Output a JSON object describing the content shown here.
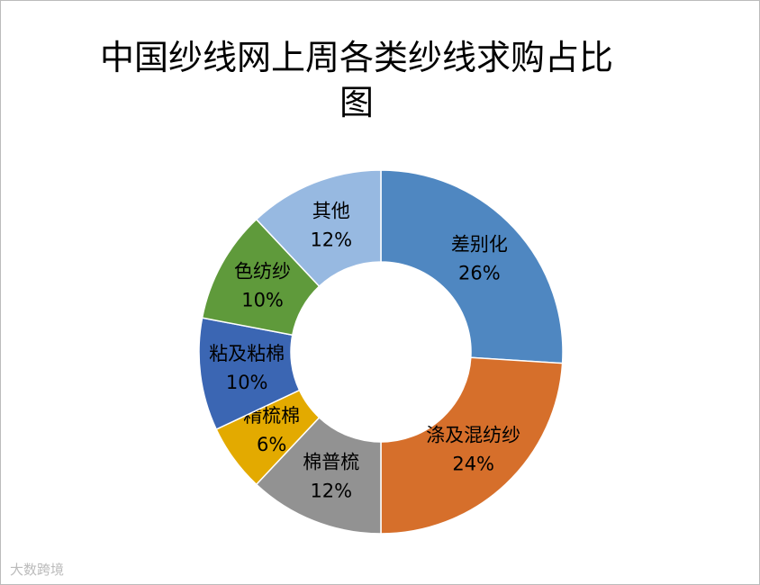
{
  "chart_data": {
    "type": "donut",
    "title": "中国纱线网上周各类纱线求购占比图",
    "categories": [
      "差别化",
      "涤及混纺纱",
      "棉普梳",
      "精梳棉",
      "粘及粘棉",
      "色纺纱",
      "其他"
    ],
    "values": [
      26,
      24,
      12,
      6,
      10,
      10,
      12
    ],
    "value_labels": [
      "26%",
      "24%",
      "12%",
      "6%",
      "10%",
      "10%",
      "12%"
    ],
    "colors": [
      "#4f87c1",
      "#d66f2b",
      "#929292",
      "#e3aa00",
      "#3b66b3",
      "#5f9a3b",
      "#97b9e1"
    ]
  },
  "watermark": "大数跨境"
}
